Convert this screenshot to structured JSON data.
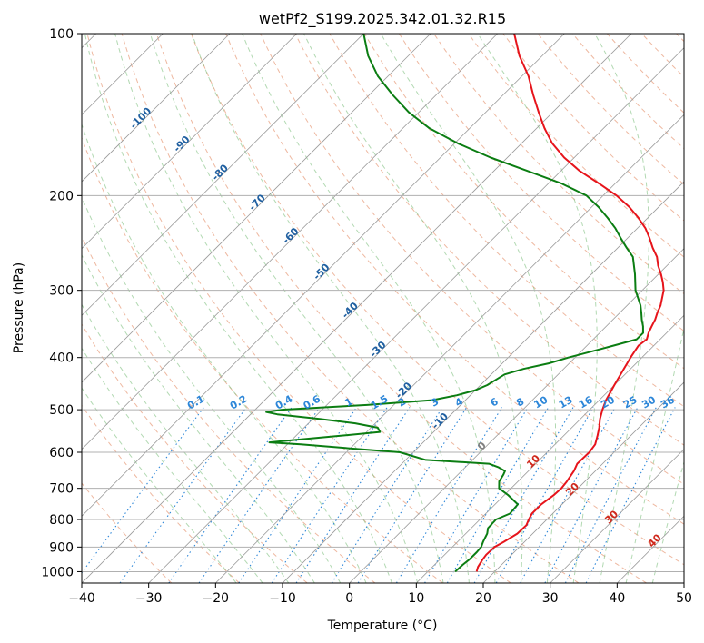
{
  "chart_data": {
    "type": "line",
    "title": "wetPf2_S199.2025.342.01.32.R15",
    "xlabel": "Temperature (°C)",
    "ylabel": "Pressure (hPa)",
    "xlim": [
      -40,
      50
    ],
    "ylim": [
      1050,
      100
    ],
    "y_scale": "log",
    "grid": true,
    "x_ticks": [
      "−40",
      "−30",
      "−20",
      "−10",
      "0",
      "10",
      "20",
      "30",
      "40",
      "50"
    ],
    "y_ticks": [
      "100",
      "200",
      "300",
      "400",
      "500",
      "600",
      "700",
      "800",
      "900",
      "1000"
    ],
    "series": [
      {
        "color": "#e6141b",
        "pressure": [
          1000,
          980,
          950,
          930,
          900,
          880,
          850,
          820,
          800,
          780,
          750,
          720,
          700,
          680,
          650,
          630,
          600,
          580,
          560,
          540,
          520,
          500,
          480,
          450,
          420,
          400,
          380,
          370,
          360,
          350,
          340,
          330,
          320,
          300,
          290,
          280,
          270,
          260,
          250,
          240,
          230,
          220,
          210,
          200,
          190,
          180,
          170,
          160,
          150,
          140,
          130,
          120,
          110,
          100
        ],
        "temperature": [
          17.3,
          16.8,
          16.4,
          16.2,
          16.3,
          16.9,
          17.7,
          17.8,
          17.3,
          16.9,
          16.9,
          17.4,
          17.5,
          17.3,
          16.8,
          16.2,
          16.3,
          16.0,
          15.1,
          14.1,
          12.9,
          11.9,
          11.0,
          10.0,
          9.0,
          8.3,
          7.7,
          8.0,
          7.3,
          6.8,
          6.3,
          5.6,
          5.0,
          3.2,
          1.9,
          0.4,
          -1.3,
          -2.8,
          -4.8,
          -6.7,
          -8.8,
          -11.4,
          -14.4,
          -18.0,
          -22.4,
          -27.2,
          -31.5,
          -35.4,
          -38.8,
          -42.1,
          -45.5,
          -49.0,
          -53.4,
          -57.5
        ]
      },
      {
        "color": "#0b7d12",
        "pressure": [
          1000,
          970,
          950,
          920,
          900,
          880,
          850,
          830,
          800,
          780,
          750,
          720,
          700,
          680,
          660,
          650,
          640,
          630,
          620,
          600,
          590,
          580,
          575,
          570,
          560,
          550,
          540,
          530,
          520,
          510,
          505,
          500,
          495,
          490,
          480,
          470,
          460,
          450,
          440,
          430,
          420,
          410,
          400,
          390,
          380,
          370,
          360,
          350,
          340,
          330,
          320,
          300,
          280,
          260,
          250,
          240,
          230,
          220,
          210,
          200,
          190,
          180,
          170,
          160,
          150,
          140,
          130,
          120,
          110,
          100
        ],
        "dewpoint": [
          14.1,
          14.2,
          14.4,
          14.4,
          14.3,
          13.8,
          13.2,
          12.5,
          12.4,
          13.6,
          13.4,
          10.5,
          8.2,
          7.2,
          6.8,
          6.5,
          5.0,
          3.0,
          -7.0,
          -12.0,
          -20.0,
          -28.0,
          -33.0,
          -30.0,
          -24.0,
          -18.0,
          -19.0,
          -23.0,
          -29.0,
          -36.0,
          -38.0,
          -36.0,
          -30.0,
          -24.0,
          -15.0,
          -12.0,
          -10.0,
          -9.0,
          -8.5,
          -8.0,
          -6.0,
          -3.0,
          -1.0,
          1.5,
          4.0,
          6.5,
          6.5,
          5.5,
          4.3,
          3.2,
          2.0,
          -1.0,
          -3.5,
          -6.4,
          -8.7,
          -11.0,
          -13.3,
          -16.0,
          -19.0,
          -22.5,
          -28.0,
          -35.0,
          -42.5,
          -49.5,
          -56.0,
          -61.5,
          -66.5,
          -71.5,
          -76.0,
          -80.0
        ]
      }
    ],
    "isotherm_labels": [
      "-100",
      "-90",
      "-80",
      "-70",
      "-60",
      "-50",
      "-40",
      "-30",
      "-20",
      "-10",
      "0",
      "10",
      "20",
      "30",
      "40"
    ],
    "mixing_ratio_labels": [
      "0.1",
      "0.2",
      "0.4",
      "0.6",
      "1",
      "1.5",
      "2",
      "3",
      "4",
      "6",
      "8",
      "10",
      "13",
      "16",
      "20",
      "25",
      "30",
      "36"
    ]
  },
  "colors": {
    "temperature_line": "#e6141b",
    "dewpoint_line": "#0b7d12",
    "isotherm_label_cold": "#1f5fa0",
    "isotherm_label_zero": "#808080",
    "isotherm_label_warm": "#d0281c",
    "mixing_ratio": "#2c86d8",
    "dry_adiabat": "#e8a080",
    "moist_adiabat": "#7fbf7f",
    "grid": "#b0b0b0"
  }
}
